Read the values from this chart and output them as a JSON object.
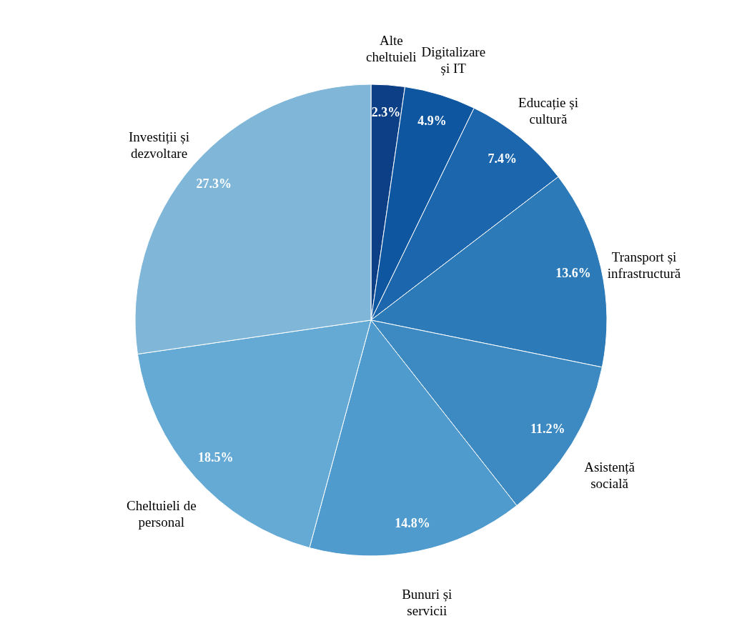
{
  "chart_data": {
    "type": "pie",
    "categories": [
      "Alte cheltuieli",
      "Digitalizare și IT",
      "Educație și cultură",
      "Transport și infrastructură",
      "Asistență socială",
      "Bunuri și servicii",
      "Cheltuieli de personal",
      "Investiții și dezvoltare"
    ],
    "values": [
      2.3,
      4.9,
      7.4,
      13.6,
      11.2,
      14.8,
      18.5,
      27.3
    ],
    "value_labels": [
      "2.3%",
      "4.9%",
      "7.4%",
      "13.6%",
      "11.2%",
      "14.8%",
      "18.5%",
      "27.3%"
    ],
    "colors": [
      "#0c3f85",
      "#0e56a0",
      "#1b66ad",
      "#2c7ab8",
      "#3d89c2",
      "#4f9bcd",
      "#64aad5",
      "#80b7d9"
    ]
  }
}
